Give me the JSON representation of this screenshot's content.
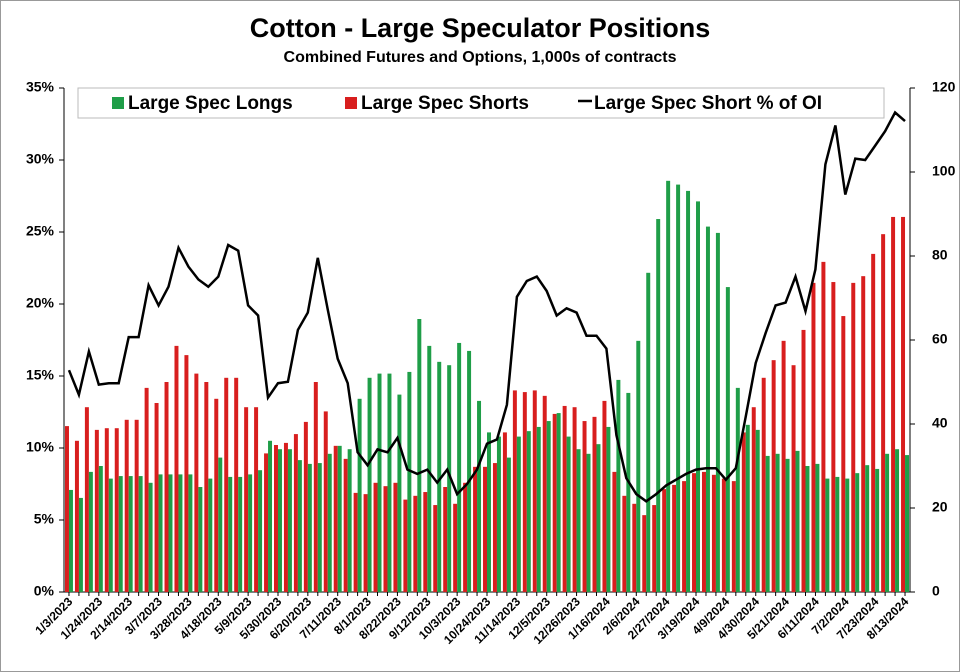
{
  "chart_data": {
    "type": "bar-line",
    "title": "Cotton - Large Speculator Positions",
    "subtitle": "Combined Futures and Options, 1,000s of contracts",
    "categories": [
      "1/3/2023",
      null,
      null,
      "1/24/2023",
      null,
      null,
      "2/14/2023",
      null,
      null,
      "3/7/2023",
      null,
      null,
      "3/28/2023",
      null,
      null,
      "4/18/2023",
      null,
      null,
      "5/9/2023",
      null,
      null,
      "5/30/2023",
      null,
      null,
      "6/20/2023",
      null,
      null,
      "7/11/2023",
      null,
      null,
      "8/1/2023",
      null,
      null,
      "8/22/2023",
      null,
      null,
      "9/12/2023",
      null,
      null,
      "10/3/2023",
      null,
      null,
      "10/24/2023",
      null,
      null,
      "11/14/2023",
      null,
      null,
      "12/5/2023",
      null,
      null,
      "12/26/2023",
      null,
      null,
      "1/16/2024",
      null,
      null,
      "2/6/2024",
      null,
      null,
      "2/27/2024",
      null,
      null,
      "3/19/2024",
      null,
      null,
      "4/9/2024",
      null,
      null,
      "4/30/2024",
      null,
      null,
      "5/21/2024",
      null,
      null,
      "6/11/2024",
      null,
      null,
      "7/2/2024",
      null,
      null,
      "7/23/2024",
      null,
      null,
      "8/13/2024"
    ],
    "series": [
      {
        "name": "Large Spec Longs",
        "type": "bar",
        "axis": "y2",
        "color": "#1f9e48",
        "values": [
          24.3,
          22.4,
          28.6,
          30,
          27,
          27.6,
          27.6,
          27.6,
          26,
          28,
          28,
          28,
          28,
          25,
          27,
          32,
          27.4,
          27.4,
          28,
          29,
          36,
          34,
          34,
          31.4,
          30.5,
          30.7,
          32.9,
          34.8,
          34,
          46,
          51,
          52,
          52,
          47,
          52.4,
          65,
          58.6,
          54.8,
          54,
          59.3,
          57.4,
          45.5,
          38,
          37,
          32,
          37,
          38.3,
          39.3,
          40.7,
          42.6,
          37,
          34,
          32.9,
          35.2,
          39.3,
          50.5,
          47.4,
          59.8,
          76,
          88.8,
          97.9,
          97,
          95.5,
          93,
          87,
          85.5,
          72.6,
          48.6,
          39.8,
          38.6,
          32.4,
          32.9,
          31.7,
          33.6,
          30,
          30.5,
          27,
          27.4,
          27,
          28.3,
          30.2,
          29.3,
          32.9,
          34,
          32.6
        ]
      },
      {
        "name": "Large Spec Shorts",
        "type": "bar",
        "axis": "y2",
        "color": "#d81e1e",
        "values": [
          39.5,
          36,
          44,
          38.6,
          39,
          39,
          41,
          41,
          48.6,
          45,
          50,
          58.6,
          56.4,
          52,
          50,
          46,
          51,
          51,
          44,
          44,
          33,
          35,
          35.5,
          37.6,
          40.5,
          50,
          43,
          34.8,
          31.7,
          23.6,
          23.3,
          26,
          25.2,
          26,
          22,
          22.9,
          23.8,
          20.7,
          25,
          21,
          26,
          29.8,
          29.8,
          30.7,
          38,
          48,
          47.6,
          48,
          46.7,
          42.4,
          44.3,
          44,
          40.7,
          41.7,
          45.5,
          28.6,
          22.9,
          21,
          18.3,
          20.7,
          24.5,
          25.5,
          26.4,
          28.3,
          28.6,
          27.9,
          27,
          26.4,
          38,
          44,
          51,
          55.2,
          59.8,
          54,
          62.4,
          73.6,
          78.6,
          73.8,
          65.7,
          73.6,
          75.2,
          80.5,
          85.2,
          89.3,
          89.3
        ]
      },
      {
        "name": "Large Spec Short % of OI",
        "type": "line",
        "axis": "y",
        "color": "#000000",
        "values": [
          15.4,
          13.7,
          16.7,
          14.4,
          14.5,
          14.5,
          17.7,
          17.7,
          21.3,
          19.9,
          21.2,
          23.9,
          22.6,
          21.7,
          21.2,
          21.9,
          24.1,
          23.7,
          19.9,
          19.2,
          13.5,
          14.5,
          14.6,
          18.2,
          19.4,
          23.2,
          19.6,
          16.2,
          14.5,
          9.7,
          8.8,
          9.9,
          9.7,
          10.7,
          8.5,
          8.2,
          8.5,
          7.6,
          8.5,
          6.8,
          7.5,
          8.5,
          10.3,
          10.6,
          13,
          20.5,
          21.6,
          21.9,
          20.9,
          19.2,
          19.7,
          19.4,
          17.8,
          17.8,
          16.9,
          10.9,
          7.9,
          6.8,
          6.3,
          6.8,
          7.4,
          7.8,
          8.2,
          8.5,
          8.6,
          8.6,
          7.8,
          8.6,
          12.2,
          15.9,
          18,
          19.9,
          20.1,
          21.9,
          19.5,
          22.4,
          29.7,
          32.4,
          27.6,
          30.1,
          30,
          31,
          32,
          33.3,
          32.7
        ]
      }
    ],
    "ylim": [
      0,
      35
    ],
    "yticks": [
      {
        "value": 0,
        "label": "0%"
      },
      {
        "value": 5,
        "label": "5%"
      },
      {
        "value": 10,
        "label": "10%"
      },
      {
        "value": 15,
        "label": "15%"
      },
      {
        "value": 20,
        "label": "20%"
      },
      {
        "value": 25,
        "label": "25%"
      },
      {
        "value": 30,
        "label": "30%"
      },
      {
        "value": 35,
        "label": "35%"
      }
    ],
    "y2lim": [
      0,
      120
    ],
    "y2ticks": [
      0,
      20,
      40,
      60,
      80,
      100,
      120
    ],
    "legend": "top",
    "grid": false
  }
}
